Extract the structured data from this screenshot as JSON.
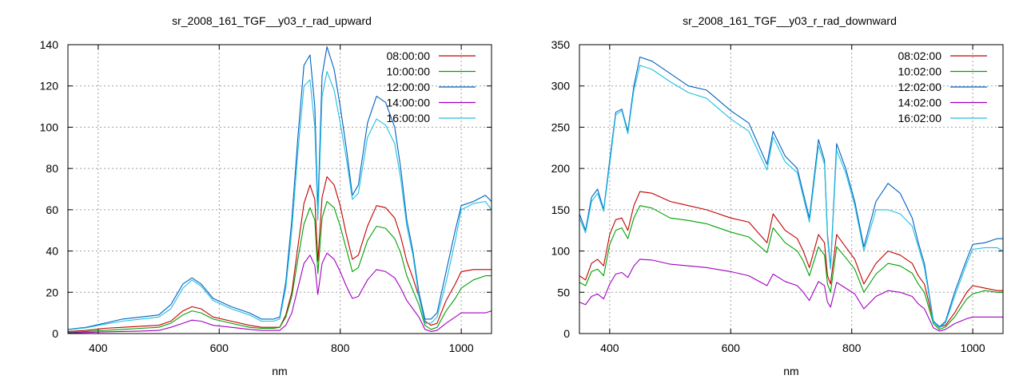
{
  "chart_data": [
    {
      "type": "line",
      "title": "sr_2008_161_TGF__y03_r_rad_upward",
      "xlabel": "nm",
      "ylabel": "",
      "xlim": [
        350,
        1050
      ],
      "ylim": [
        0,
        140
      ],
      "xticks": [
        400,
        600,
        800,
        1000
      ],
      "yticks": [
        0,
        20,
        40,
        60,
        80,
        100,
        120,
        140
      ],
      "grid": true,
      "legend": "top-right",
      "series": [
        {
          "name": "08:00:00",
          "color": "#c00000",
          "x": [
            350,
            380,
            410,
            440,
            470,
            500,
            520,
            540,
            555,
            570,
            590,
            620,
            650,
            670,
            690,
            700,
            710,
            720,
            730,
            740,
            750,
            758,
            763,
            770,
            778,
            790,
            800,
            810,
            820,
            830,
            845,
            860,
            875,
            890,
            900,
            910,
            920,
            930,
            940,
            950,
            960,
            975,
            990,
            1000,
            1020,
            1040,
            1050
          ],
          "y": [
            1,
            1.5,
            2.5,
            3,
            3.5,
            4,
            6,
            11,
            13,
            12,
            8,
            6,
            4,
            3,
            3,
            3,
            9,
            20,
            42,
            63,
            72,
            65,
            35,
            66,
            76,
            72,
            62,
            48,
            36,
            38,
            52,
            62,
            61,
            56,
            47,
            35,
            27,
            18,
            6,
            4,
            5,
            16,
            24,
            30,
            31,
            31,
            31
          ]
        },
        {
          "name": "10:00:00",
          "color": "#00a000",
          "x": [
            350,
            380,
            410,
            440,
            470,
            500,
            520,
            540,
            555,
            570,
            590,
            620,
            650,
            670,
            690,
            700,
            710,
            720,
            730,
            740,
            750,
            758,
            763,
            770,
            778,
            790,
            800,
            810,
            820,
            830,
            845,
            860,
            875,
            890,
            900,
            910,
            920,
            930,
            940,
            950,
            960,
            975,
            990,
            1000,
            1020,
            1040,
            1050
          ],
          "y": [
            0.5,
            1,
            1.5,
            2,
            2.5,
            3,
            5,
            9,
            11,
            10,
            7,
            5,
            3,
            2.5,
            2.5,
            3,
            8,
            18,
            36,
            53,
            61,
            55,
            29,
            56,
            64,
            61,
            52,
            41,
            30,
            32,
            45,
            52,
            51,
            46,
            39,
            28,
            21,
            14,
            4,
            2,
            3,
            11,
            17,
            22,
            26,
            28,
            28
          ]
        },
        {
          "name": "12:00:00",
          "color": "#0060c0",
          "x": [
            350,
            380,
            410,
            440,
            470,
            500,
            520,
            540,
            555,
            570,
            590,
            620,
            650,
            670,
            690,
            700,
            710,
            720,
            730,
            740,
            750,
            758,
            763,
            770,
            778,
            790,
            800,
            810,
            820,
            830,
            845,
            860,
            875,
            890,
            900,
            910,
            920,
            930,
            940,
            950,
            960,
            975,
            990,
            1000,
            1020,
            1040,
            1050
          ],
          "y": [
            2,
            3,
            5,
            7,
            8,
            9,
            14,
            24,
            27,
            24,
            17,
            13,
            10,
            7,
            7,
            8,
            25,
            55,
            95,
            130,
            135,
            110,
            60,
            125,
            139,
            128,
            110,
            90,
            67,
            72,
            102,
            115,
            112,
            100,
            80,
            55,
            40,
            20,
            7,
            7,
            10,
            30,
            50,
            62,
            64,
            67,
            64
          ]
        },
        {
          "name": "14:00:00",
          "color": "#a000c0",
          "x": [
            350,
            380,
            410,
            440,
            470,
            500,
            520,
            540,
            555,
            570,
            590,
            620,
            650,
            670,
            690,
            700,
            710,
            720,
            730,
            740,
            750,
            758,
            763,
            770,
            778,
            790,
            800,
            810,
            820,
            830,
            845,
            860,
            875,
            890,
            900,
            910,
            920,
            930,
            940,
            950,
            960,
            975,
            990,
            1000,
            1020,
            1040,
            1050
          ],
          "y": [
            0.3,
            0.5,
            0.8,
            1,
            1.2,
            1.5,
            3,
            5,
            6.5,
            6,
            4,
            3,
            2,
            1.5,
            1.5,
            1.5,
            4,
            10,
            22,
            34,
            38,
            33,
            19,
            34,
            39,
            36,
            30,
            23,
            17,
            18,
            26,
            31,
            30,
            27,
            22,
            16,
            12,
            8,
            2,
            1,
            1.5,
            5,
            8,
            10,
            10,
            10,
            11
          ]
        },
        {
          "name": "16:00:00",
          "color": "#20c0e0",
          "x": [
            350,
            380,
            410,
            440,
            470,
            500,
            520,
            540,
            555,
            570,
            590,
            620,
            650,
            670,
            690,
            700,
            710,
            720,
            730,
            740,
            750,
            758,
            763,
            770,
            778,
            790,
            800,
            810,
            820,
            830,
            845,
            860,
            875,
            890,
            900,
            910,
            920,
            930,
            940,
            950,
            960,
            975,
            990,
            1000,
            1020,
            1040,
            1050
          ],
          "y": [
            1.8,
            2.8,
            4.5,
            6,
            7,
            8,
            12,
            22,
            26,
            23,
            16,
            12,
            9,
            6,
            6,
            7,
            22,
            50,
            88,
            120,
            123,
            100,
            55,
            115,
            127,
            118,
            102,
            85,
            65,
            68,
            95,
            104,
            101,
            92,
            75,
            52,
            38,
            18,
            5,
            5,
            8,
            25,
            45,
            60,
            63,
            64,
            60
          ]
        }
      ]
    },
    {
      "type": "line",
      "title": "sr_2008_161_TGF__y03_r_rad_downward",
      "xlabel": "nm",
      "ylabel": "",
      "xlim": [
        350,
        1050
      ],
      "ylim": [
        0,
        350
      ],
      "xticks": [
        400,
        600,
        800,
        1000
      ],
      "yticks": [
        0,
        50,
        100,
        150,
        200,
        250,
        300,
        350
      ],
      "grid": true,
      "legend": "top-right",
      "series": [
        {
          "name": "08:02:00",
          "color": "#c00000",
          "x": [
            350,
            360,
            370,
            380,
            390,
            400,
            410,
            420,
            430,
            440,
            450,
            470,
            500,
            530,
            560,
            600,
            630,
            660,
            670,
            690,
            710,
            720,
            730,
            745,
            755,
            760,
            765,
            775,
            790,
            805,
            820,
            840,
            860,
            880,
            900,
            910,
            920,
            935,
            945,
            955,
            970,
            990,
            1000,
            1020,
            1040,
            1050
          ],
          "y": [
            70,
            65,
            85,
            90,
            82,
            120,
            138,
            140,
            125,
            155,
            172,
            170,
            160,
            155,
            150,
            140,
            135,
            110,
            145,
            125,
            115,
            100,
            80,
            120,
            110,
            70,
            60,
            120,
            105,
            90,
            60,
            85,
            100,
            95,
            85,
            70,
            60,
            15,
            8,
            10,
            25,
            50,
            58,
            55,
            52,
            52
          ]
        },
        {
          "name": "10:02:00",
          "color": "#00a000",
          "x": [
            350,
            360,
            370,
            380,
            390,
            400,
            410,
            420,
            430,
            440,
            450,
            470,
            500,
            530,
            560,
            600,
            630,
            660,
            670,
            690,
            710,
            720,
            730,
            745,
            755,
            760,
            765,
            775,
            790,
            805,
            820,
            840,
            860,
            880,
            900,
            910,
            920,
            935,
            945,
            955,
            970,
            990,
            1000,
            1020,
            1040,
            1050
          ],
          "y": [
            62,
            58,
            75,
            78,
            70,
            108,
            125,
            128,
            115,
            140,
            155,
            152,
            140,
            137,
            133,
            123,
            117,
            98,
            128,
            110,
            100,
            88,
            70,
            105,
            95,
            60,
            50,
            105,
            92,
            78,
            50,
            72,
            85,
            82,
            73,
            60,
            50,
            12,
            5,
            8,
            20,
            42,
            48,
            52,
            50,
            50
          ]
        },
        {
          "name": "12:02:00",
          "color": "#0060c0",
          "x": [
            350,
            360,
            370,
            380,
            390,
            400,
            410,
            420,
            430,
            440,
            450,
            470,
            500,
            530,
            560,
            600,
            630,
            660,
            670,
            690,
            710,
            720,
            730,
            745,
            755,
            760,
            765,
            775,
            790,
            805,
            820,
            840,
            860,
            880,
            900,
            910,
            920,
            935,
            945,
            955,
            970,
            990,
            1000,
            1020,
            1040,
            1050
          ],
          "y": [
            145,
            125,
            165,
            175,
            150,
            210,
            268,
            272,
            245,
            300,
            335,
            330,
            315,
            300,
            295,
            270,
            255,
            205,
            245,
            215,
            200,
            170,
            140,
            235,
            210,
            120,
            80,
            230,
            200,
            160,
            105,
            160,
            182,
            170,
            140,
            110,
            85,
            15,
            8,
            15,
            50,
            90,
            108,
            110,
            115,
            115
          ]
        },
        {
          "name": "14:02:00",
          "color": "#a000c0",
          "x": [
            350,
            360,
            370,
            380,
            390,
            400,
            410,
            420,
            430,
            440,
            450,
            470,
            500,
            530,
            560,
            600,
            630,
            660,
            670,
            690,
            710,
            720,
            730,
            745,
            755,
            760,
            765,
            775,
            790,
            805,
            820,
            840,
            860,
            880,
            900,
            910,
            920,
            935,
            945,
            955,
            970,
            990,
            1000,
            1020,
            1040,
            1050
          ],
          "y": [
            38,
            35,
            45,
            48,
            42,
            60,
            72,
            74,
            68,
            82,
            90,
            89,
            84,
            82,
            80,
            75,
            70,
            58,
            72,
            63,
            58,
            50,
            40,
            63,
            58,
            38,
            32,
            62,
            55,
            48,
            30,
            45,
            52,
            50,
            45,
            36,
            30,
            7,
            3,
            5,
            12,
            18,
            20,
            20,
            20,
            20
          ]
        },
        {
          "name": "16:02:00",
          "color": "#20c0e0",
          "x": [
            350,
            360,
            370,
            380,
            390,
            400,
            410,
            420,
            430,
            440,
            450,
            470,
            500,
            530,
            560,
            600,
            630,
            660,
            670,
            690,
            710,
            720,
            730,
            745,
            755,
            760,
            765,
            775,
            790,
            805,
            820,
            840,
            860,
            880,
            900,
            910,
            920,
            935,
            945,
            955,
            970,
            990,
            1000,
            1020,
            1040,
            1050
          ],
          "y": [
            140,
            122,
            160,
            170,
            148,
            205,
            265,
            270,
            242,
            295,
            325,
            320,
            305,
            292,
            285,
            260,
            245,
            198,
            238,
            208,
            195,
            165,
            135,
            228,
            205,
            115,
            78,
            222,
            195,
            155,
            100,
            150,
            150,
            145,
            130,
            105,
            80,
            14,
            7,
            13,
            45,
            85,
            102,
            104,
            104,
            100
          ]
        }
      ]
    }
  ]
}
